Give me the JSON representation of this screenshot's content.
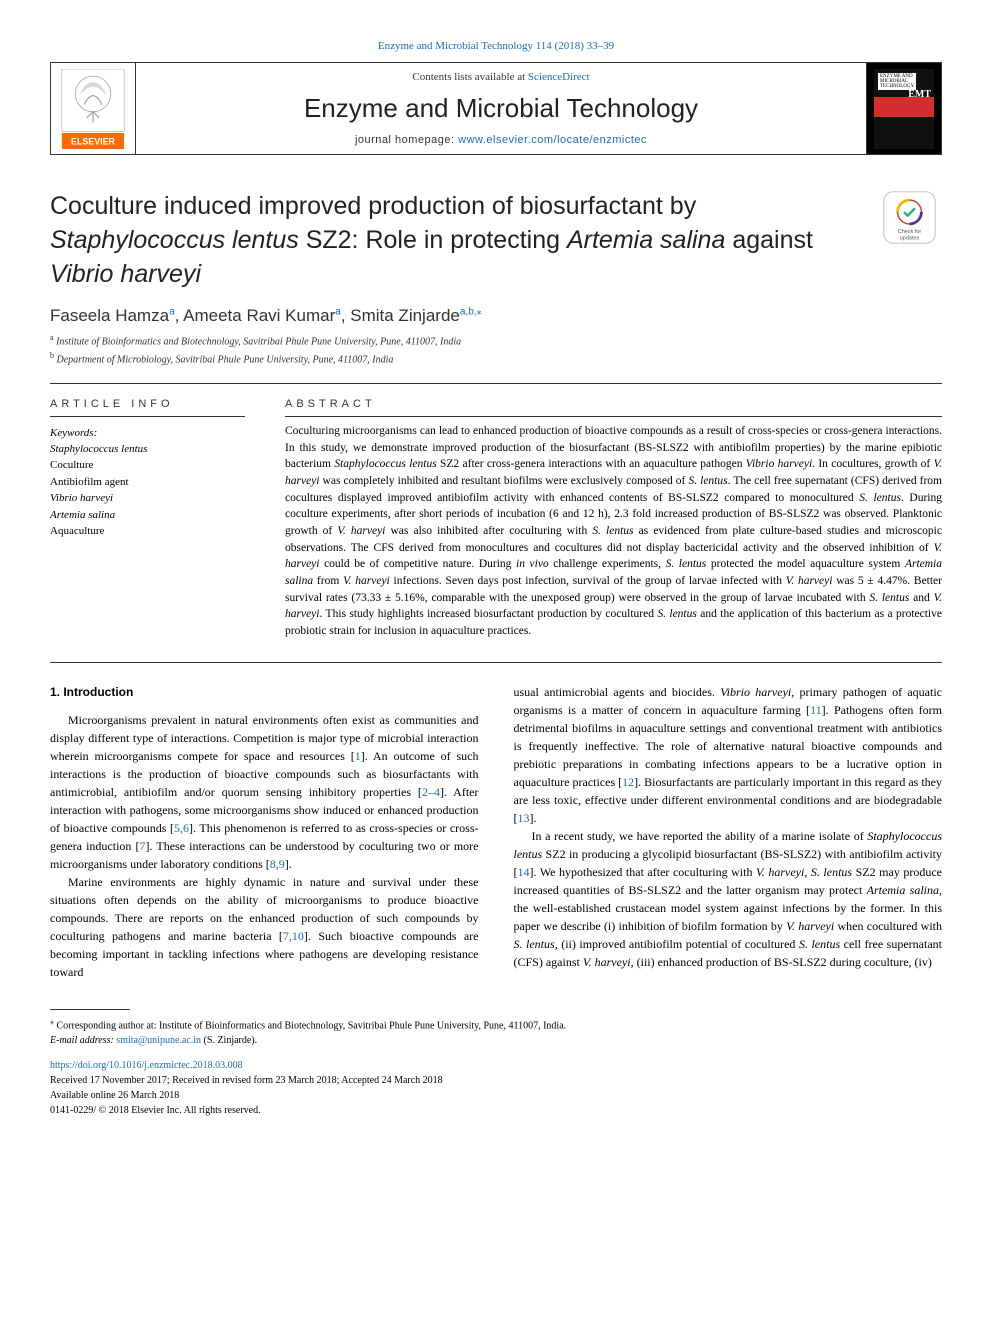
{
  "header": {
    "top_link": "Enzyme and Microbial Technology 114 (2018) 33–39",
    "contents_line_prefix": "Contents lists available at ",
    "contents_line_link": "ScienceDirect",
    "journal_title": "Enzyme and Microbial Technology",
    "homepage_prefix": "journal homepage: ",
    "homepage_link": "www.elsevier.com/locate/enzmictec",
    "cover_label_line1": "ENZYME AND",
    "cover_label_line2": "MICROBIAL",
    "cover_label_line3": "TECHNOLOGY",
    "cover_emt": "EMT"
  },
  "article": {
    "title_html": "Coculture induced improved production of biosurfactant by <em>Staphylococcus lentus</em> SZ2: Role in protecting <em>Artemia salina</em> against <em>Vibrio harveyi</em>",
    "check_updates_label": "Check for updates"
  },
  "authors": {
    "line_html": "Faseela Hamza<sup>a</sup>, Ameeta Ravi Kumar<sup>a</sup>, Smita Zinjarde<sup>a,b,</sup><sup>⁎</sup>"
  },
  "affiliations": {
    "a": "Institute of Bioinformatics and Biotechnology, Savitribai Phule Pune University, Pune, 411007, India",
    "b": "Department of Microbiology, Savitribai Phule Pune University, Pune, 411007, India"
  },
  "article_info": {
    "label": "ARTICLE INFO",
    "keywords_label": "Keywords:",
    "keywords_html": "<em>Staphylococcus lentus</em><br>Coculture<br>Antibiofilm agent<br><em>Vibrio harveyi</em><br><em>Artemia salina</em><br>Aquaculture"
  },
  "abstract": {
    "label": "ABSTRACT",
    "text_html": "Coculturing microorganisms can lead to enhanced production of bioactive compounds as a result of cross-species or cross-genera interactions. In this study, we demonstrate improved production of the biosurfactant (BS-SLSZ2 with antibiofilm properties) by the marine epibiotic bacterium <em>Staphylococcus lentus</em> SZ2 after cross-genera interactions with an aquaculture pathogen <em>Vibrio harveyi</em>. In cocultures, growth of <em>V. harveyi</em> was completely inhibited and resultant biofilms were exclusively composed of <em>S. lentus</em>. The cell free supernatant (CFS) derived from cocultures displayed improved antibiofilm activity with enhanced contents of BS-SLSZ2 compared to monocultured <em>S. lentus</em>. During coculture experiments, after short periods of incubation (6 and 12 h), 2.3 fold increased production of BS-SLSZ2 was observed. Planktonic growth of <em>V. harveyi</em> was also inhibited after coculturing with <em>S. lentus</em> as evidenced from plate culture-based studies and microscopic observations. The CFS derived from monocultures and cocultures did not display bactericidal activity and the observed inhibition of <em>V. harveyi</em> could be of competitive nature. During <em>in vivo</em> challenge experiments, <em>S. lentus</em> protected the model aquaculture system <em>Artemia salina</em> from <em>V. harveyi</em> infections. Seven days post infection, survival of the group of larvae infected with <em>V. harveyi</em> was 5 ± 4.47%. Better survival rates (73.33 ± 5.16%, comparable with the unexposed group) were observed in the group of larvae incubated with <em>S. lentus</em> and <em>V. harveyi</em>. This study highlights increased biosurfactant production by cocultured <em>S. lentus</em> and the application of this bacterium as a protective probiotic strain for inclusion in aquaculture practices."
  },
  "body": {
    "intro_heading": "1. Introduction",
    "col1_p1_html": "Microorganisms prevalent in natural environments often exist as communities and display different type of interactions. Competition is major type of microbial interaction wherein microorganisms compete for space and resources [<span class=\"ref-link\">1</span>]. An outcome of such interactions is the production of bioactive compounds such as biosurfactants with antimicrobial, antibiofilm and/or quorum sensing inhibitory properties [<span class=\"ref-link\">2–4</span>]. After interaction with pathogens, some microorganisms show induced or enhanced production of bioactive compounds [<span class=\"ref-link\">5,6</span>]. This phenomenon is referred to as cross-species or cross-genera induction [<span class=\"ref-link\">7</span>]. These interactions can be understood by coculturing two or more microorganisms under laboratory conditions [<span class=\"ref-link\">8,9</span>].",
    "col1_p2_html": "Marine environments are highly dynamic in nature and survival under these situations often depends on the ability of microorganisms to produce bioactive compounds. There are reports on the enhanced production of such compounds by coculturing pathogens and marine bacteria [<span class=\"ref-link\">7,10</span>]. Such bioactive compounds are becoming important in tackling infections where pathogens are developing resistance toward",
    "col2_p1_html": "usual antimicrobial agents and biocides. <em>Vibrio harveyi</em>, primary pathogen of aquatic organisms is a matter of concern in aquaculture farming [<span class=\"ref-link\">11</span>]. Pathogens often form detrimental biofilms in aquaculture settings and conventional treatment with antibiotics is frequently ineffective. The role of alternative natural bioactive compounds and prebiotic preparations in combating infections appears to be a lucrative option in aquaculture practices [<span class=\"ref-link\">12</span>]. Biosurfactants are particularly important in this regard as they are less toxic, effective under different environmental conditions and are biodegradable [<span class=\"ref-link\">13</span>].",
    "col2_p2_html": "In a recent study, we have reported the ability of a marine isolate of <em>Staphylococcus lentus</em> SZ2 in producing a glycolipid biosurfactant (BS-SLSZ2) with antibiofilm activity [<span class=\"ref-link\">14</span>]. We hypothesized that after coculturing with <em>V. harveyi</em>, <em>S. lentus</em> SZ2 may produce increased quantities of BS-SLSZ2 and the latter organism may protect <em>Artemia salina</em>, the well-established crustacean model system against infections by the former. In this paper we describe (i) inhibition of biofilm formation by <em>V. harveyi</em> when cocultured with <em>S. lentus</em>, (ii) improved antibiofilm potential of cocultured <em>S. lentus</em> cell free supernatant (CFS) against <em>V. harveyi</em>, (iii) enhanced production of BS-SLSZ2 during coculture, (iv)"
  },
  "footnotes": {
    "corresponding_html": "<sup>⁎</sup> Corresponding author at: Institute of Bioinformatics and Biotechnology, Savitribai Phule Pune University, Pune, 411007, India.",
    "email_prefix": "E-mail address: ",
    "email_link": "smita@unipune.ac.in",
    "email_suffix": " (S. Zinjarde)."
  },
  "doi": {
    "link": "https://doi.org/10.1016/j.enzmictec.2018.03.008",
    "received": "Received 17 November 2017; Received in revised form 23 March 2018; Accepted 24 March 2018",
    "available": "Available online 26 March 2018",
    "copyright": "0141-0229/ © 2018 Elsevier Inc. All rights reserved."
  },
  "colors": {
    "link": "#1a6db5",
    "text": "#000000",
    "elsevier_orange": "#ff6b00",
    "cover_red": "#d32f2f"
  }
}
